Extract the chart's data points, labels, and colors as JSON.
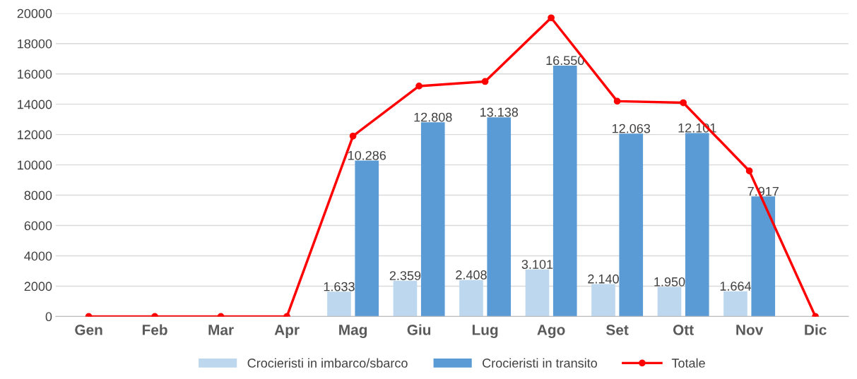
{
  "chart_data": {
    "type": "bar",
    "categories": [
      "Gen",
      "Feb",
      "Mar",
      "Apr",
      "Mag",
      "Giu",
      "Lug",
      "Ago",
      "Set",
      "Ott",
      "Nov",
      "Dic"
    ],
    "series": [
      {
        "name": "Crocieristi in imbarco/sbarco",
        "color": "#bdd7ee",
        "values": [
          0,
          0,
          0,
          0,
          1633,
          2359,
          2408,
          3101,
          2140,
          1950,
          1664,
          0
        ],
        "value_labels": [
          null,
          null,
          null,
          null,
          "1.633",
          "2.359",
          "2.408",
          "3.101",
          "2.140",
          "1.950",
          "1.664",
          null
        ]
      },
      {
        "name": "Crocieristi in transito",
        "color": "#5b9bd5",
        "values": [
          0,
          0,
          0,
          0,
          10286,
          12808,
          13138,
          16550,
          12063,
          12101,
          7917,
          0
        ],
        "value_labels": [
          null,
          null,
          null,
          null,
          "10.286",
          "12.808",
          "13.138",
          "16.550",
          "12.063",
          "12.101",
          "7.917",
          null
        ]
      },
      {
        "name": "Totale",
        "type": "line",
        "color": "#ff0000",
        "marker": "circle",
        "values": [
          0,
          0,
          0,
          0,
          11900,
          15200,
          15500,
          19700,
          14200,
          14100,
          9600,
          0
        ]
      }
    ],
    "ylim": [
      0,
      20000
    ],
    "yticks": [
      0,
      2000,
      4000,
      6000,
      8000,
      10000,
      12000,
      14000,
      16000,
      18000,
      20000
    ],
    "grid": "y",
    "legend": "bottom"
  }
}
